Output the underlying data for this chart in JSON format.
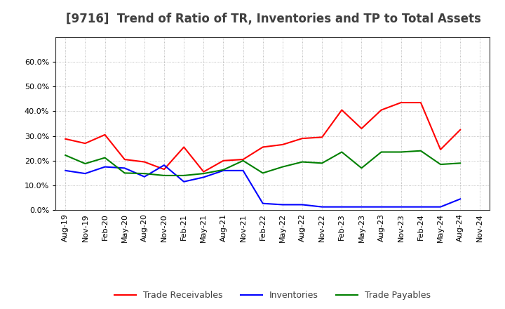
{
  "title": "[9716]  Trend of Ratio of TR, Inventories and TP to Total Assets",
  "x_labels": [
    "Aug-19",
    "Nov-19",
    "Feb-20",
    "May-20",
    "Aug-20",
    "Nov-20",
    "Feb-21",
    "May-21",
    "Aug-21",
    "Nov-21",
    "Feb-22",
    "May-22",
    "Aug-22",
    "Nov-22",
    "Feb-23",
    "May-23",
    "Aug-23",
    "Nov-23",
    "Feb-24",
    "May-24",
    "Aug-24",
    "Nov-24"
  ],
  "trade_receivables": [
    0.288,
    0.27,
    0.305,
    0.205,
    0.195,
    0.165,
    0.255,
    0.155,
    0.2,
    0.205,
    0.255,
    0.265,
    0.29,
    0.295,
    0.405,
    0.33,
    0.405,
    0.435,
    0.435,
    0.245,
    0.325,
    null
  ],
  "inventories": [
    0.16,
    0.148,
    0.175,
    0.17,
    0.135,
    0.182,
    0.115,
    0.133,
    0.16,
    0.16,
    0.027,
    0.022,
    0.022,
    0.013,
    0.013,
    0.013,
    0.013,
    0.013,
    0.013,
    0.013,
    0.045,
    null
  ],
  "trade_payables": [
    0.222,
    0.188,
    0.212,
    0.15,
    0.148,
    0.14,
    0.14,
    0.148,
    0.163,
    0.2,
    0.15,
    0.175,
    0.195,
    0.19,
    0.235,
    0.17,
    0.235,
    0.235,
    0.24,
    0.185,
    0.19,
    null
  ],
  "tr_color": "#ff0000",
  "inv_color": "#0000ff",
  "tp_color": "#008000",
  "ylim": [
    0.0,
    0.7
  ],
  "yticks": [
    0.0,
    0.1,
    0.2,
    0.3,
    0.4,
    0.5,
    0.6
  ],
  "background_color": "#ffffff",
  "grid_color": "#aaaaaa",
  "title_color": "#404040",
  "title_fontsize": 12,
  "tick_fontsize": 8,
  "legend_fontsize": 9
}
